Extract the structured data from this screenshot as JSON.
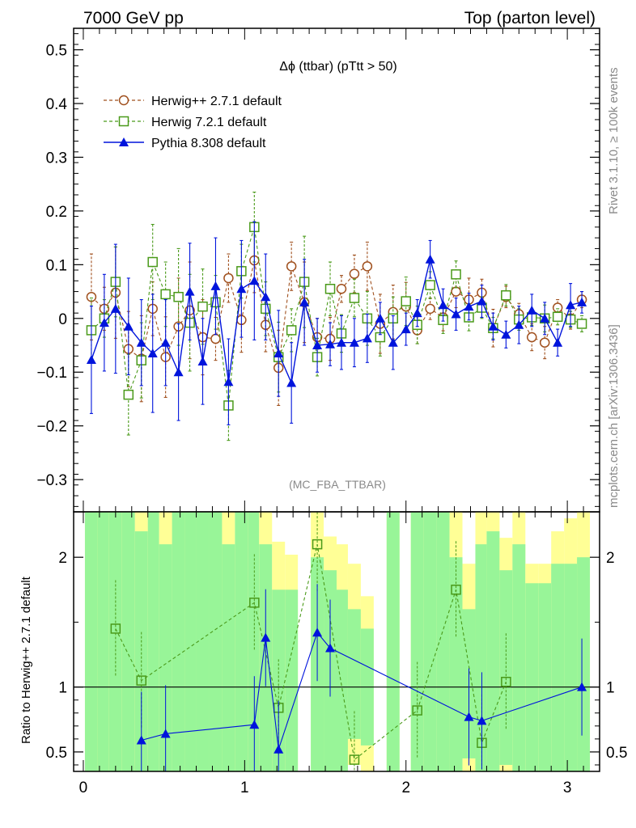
{
  "header": {
    "left": "7000 GeV pp",
    "right": "Top (parton level)"
  },
  "side_labels": {
    "rivet": "Rivet 3.1.10, ≥ 100k events",
    "mcplots": "mcplots.cern.ch [arXiv:1306.3436]"
  },
  "chart_data": [
    {
      "type": "line",
      "title": "Δϕ (ttbar) (pTtt > 50)",
      "analysis_label": "(MC_FBA_TTBAR)",
      "xlabel": "",
      "ylabel": "",
      "xlim": [
        -0.06,
        3.2
      ],
      "ylim": [
        -0.36,
        0.54
      ],
      "xticks": [
        "0",
        "1",
        "2",
        "3"
      ],
      "yticks": [
        "−0.3",
        "−0.2",
        "−0.1",
        "0",
        "0.1",
        "0.2",
        "0.3",
        "0.4",
        "0.5"
      ],
      "legend_position": "top-left",
      "colors": {
        "herwig_pp": "#a0501e",
        "herwig7": "#4a9a1a",
        "pythia": "#0014dc"
      },
      "series": [
        {
          "name": "Herwig++ 2.7.1 default",
          "marker": "open-circle",
          "line": "dashed",
          "x": [
            0.05,
            0.13,
            0.2,
            0.28,
            0.36,
            0.43,
            0.51,
            0.59,
            0.66,
            0.74,
            0.82,
            0.9,
            0.98,
            1.06,
            1.13,
            1.21,
            1.29,
            1.37,
            1.45,
            1.53,
            1.6,
            1.68,
            1.76,
            1.84,
            1.92,
            2.0,
            2.07,
            2.15,
            2.23,
            2.31,
            2.39,
            2.47,
            2.54,
            2.62,
            2.7,
            2.78,
            2.86,
            2.94,
            3.02,
            3.09
          ],
          "y": [
            0.04,
            0.018,
            0.048,
            -0.057,
            -0.075,
            0.018,
            -0.072,
            -0.015,
            0.015,
            -0.035,
            -0.038,
            0.075,
            -0.003,
            0.108,
            -0.012,
            -0.092,
            0.097,
            0.03,
            -0.035,
            -0.038,
            0.055,
            0.083,
            0.097,
            -0.01,
            0.012,
            0.022,
            -0.022,
            0.018,
            0.002,
            0.05,
            0.035,
            0.048,
            -0.018,
            0.04,
            0.008,
            -0.035,
            -0.045,
            0.02,
            0.0,
            0.035
          ],
          "err": [
            0.08,
            0.04,
            0.085,
            0.07,
            0.08,
            0.05,
            0.075,
            0.09,
            0.09,
            0.07,
            0.04,
            0.045,
            0.06,
            0.06,
            0.05,
            0.07,
            0.045,
            0.075,
            0.035,
            0.04,
            0.025,
            0.035,
            0.045,
            0.055,
            0.05,
            0.045,
            0.025,
            0.02,
            0.025,
            0.03,
            0.04,
            0.025,
            0.035,
            0.02,
            0.02,
            0.025,
            0.03,
            0.015,
            0.02,
            0.015
          ]
        },
        {
          "name": "Herwig 7.2.1 default",
          "marker": "open-square",
          "line": "dashed",
          "x": [
            0.05,
            0.13,
            0.2,
            0.28,
            0.36,
            0.43,
            0.51,
            0.59,
            0.66,
            0.74,
            0.82,
            0.9,
            0.98,
            1.06,
            1.13,
            1.21,
            1.29,
            1.37,
            1.45,
            1.53,
            1.6,
            1.68,
            1.76,
            1.84,
            1.92,
            2.0,
            2.07,
            2.15,
            2.23,
            2.31,
            2.39,
            2.47,
            2.54,
            2.62,
            2.7,
            2.78,
            2.86,
            2.94,
            3.02,
            3.09
          ],
          "y": [
            -0.022,
            0.0,
            0.068,
            -0.142,
            -0.078,
            0.105,
            0.045,
            0.04,
            -0.008,
            0.022,
            0.03,
            -0.162,
            0.088,
            0.17,
            0.018,
            -0.072,
            -0.022,
            0.068,
            -0.072,
            0.055,
            -0.028,
            0.038,
            0.0,
            -0.035,
            0.0,
            0.032,
            -0.012,
            0.062,
            -0.003,
            0.082,
            0.002,
            0.02,
            -0.018,
            0.043,
            -0.002,
            0.002,
            0.0,
            0.003,
            -0.002,
            -0.01
          ],
          "err": [
            0.06,
            0.035,
            0.065,
            0.075,
            0.07,
            0.07,
            0.06,
            0.09,
            0.09,
            0.07,
            0.05,
            0.065,
            0.05,
            0.065,
            0.05,
            0.065,
            0.04,
            0.085,
            0.035,
            0.05,
            0.035,
            0.035,
            0.05,
            0.035,
            0.04,
            0.045,
            0.035,
            0.025,
            0.025,
            0.025,
            0.025,
            0.02,
            0.02,
            0.02,
            0.02,
            0.015,
            0.025,
            0.015,
            0.015,
            0.015
          ]
        },
        {
          "name": "Pythia 8.308 default",
          "marker": "filled-triangle",
          "line": "solid",
          "x": [
            0.05,
            0.13,
            0.2,
            0.28,
            0.36,
            0.43,
            0.51,
            0.59,
            0.66,
            0.74,
            0.82,
            0.9,
            0.98,
            1.06,
            1.13,
            1.21,
            1.29,
            1.37,
            1.45,
            1.53,
            1.6,
            1.68,
            1.76,
            1.84,
            1.92,
            2.0,
            2.07,
            2.15,
            2.23,
            2.31,
            2.39,
            2.47,
            2.54,
            2.62,
            2.7,
            2.78,
            2.86,
            2.94,
            3.02,
            3.09
          ],
          "y": [
            -0.077,
            -0.008,
            0.018,
            -0.015,
            -0.045,
            -0.065,
            -0.045,
            -0.1,
            0.05,
            -0.08,
            0.06,
            -0.118,
            0.055,
            0.07,
            0.04,
            -0.065,
            -0.12,
            0.03,
            -0.05,
            -0.048,
            -0.045,
            -0.045,
            -0.037,
            0.0,
            -0.045,
            -0.02,
            0.01,
            0.11,
            0.025,
            0.008,
            0.022,
            0.032,
            -0.015,
            -0.03,
            -0.012,
            0.015,
            0.0,
            -0.045,
            0.025,
            0.03
          ],
          "err": [
            0.1,
            0.09,
            0.12,
            0.09,
            0.08,
            0.11,
            0.08,
            0.09,
            0.09,
            0.08,
            0.09,
            0.08,
            0.09,
            0.11,
            0.08,
            0.08,
            0.075,
            0.08,
            0.05,
            0.04,
            0.05,
            0.045,
            0.045,
            0.03,
            0.05,
            0.03,
            0.025,
            0.035,
            0.03,
            0.03,
            0.025,
            0.03,
            0.025,
            0.025,
            0.035,
            0.03,
            0.03,
            0.025,
            0.04,
            0.02
          ]
        }
      ]
    },
    {
      "type": "line",
      "title": "",
      "xlabel": "",
      "ylabel": "Ratio to Herwig++ 2.7.1 default",
      "xlim": [
        -0.06,
        3.2
      ],
      "ylim": [
        0.35,
        2.35
      ],
      "xticks": [
        "0",
        "1",
        "2",
        "3"
      ],
      "yticks": [
        "0.5",
        "1",
        "2"
      ],
      "band_colors": {
        "inner": "#98f598",
        "outer": "#ffff96"
      },
      "bands": [
        {
          "x0": 0.01,
          "x1": 0.09,
          "lo1": 0.35,
          "hi1": 2.35,
          "lo2": 0.35,
          "hi2": 2.35
        },
        {
          "x0": 0.09,
          "x1": 0.16,
          "lo1": 0.35,
          "hi1": 2.35,
          "lo2": 0.35,
          "hi2": 2.35
        },
        {
          "x0": 0.16,
          "x1": 0.24,
          "lo1": 0.35,
          "hi1": 2.35,
          "lo2": 0.35,
          "hi2": 2.35
        },
        {
          "x0": 0.24,
          "x1": 0.32,
          "lo1": 0.35,
          "hi1": 2.35,
          "lo2": 0.35,
          "hi2": 2.35
        },
        {
          "x0": 0.32,
          "x1": 0.4,
          "lo1": 0.35,
          "hi1": 2.2,
          "lo2": 0.35,
          "hi2": 2.35
        },
        {
          "x0": 0.4,
          "x1": 0.47,
          "lo1": 0.35,
          "hi1": 2.35,
          "lo2": 0.35,
          "hi2": 2.35
        },
        {
          "x0": 0.47,
          "x1": 0.55,
          "lo1": 0.35,
          "hi1": 2.1,
          "lo2": 0.35,
          "hi2": 2.35
        },
        {
          "x0": 0.55,
          "x1": 0.63,
          "lo1": 0.35,
          "hi1": 2.35,
          "lo2": 0.35,
          "hi2": 2.35
        },
        {
          "x0": 0.63,
          "x1": 0.7,
          "lo1": 0.35,
          "hi1": 2.35,
          "lo2": 0.35,
          "hi2": 2.35
        },
        {
          "x0": 0.7,
          "x1": 0.78,
          "lo1": 0.35,
          "hi1": 2.35,
          "lo2": 0.35,
          "hi2": 2.35
        },
        {
          "x0": 0.78,
          "x1": 0.86,
          "lo1": 0.35,
          "hi1": 2.35,
          "lo2": 0.35,
          "hi2": 2.35
        },
        {
          "x0": 0.86,
          "x1": 0.94,
          "lo1": 0.35,
          "hi1": 2.1,
          "lo2": 0.35,
          "hi2": 2.35
        },
        {
          "x0": 0.94,
          "x1": 1.02,
          "lo1": 0.35,
          "hi1": 2.35,
          "lo2": 0.35,
          "hi2": 2.35
        },
        {
          "x0": 1.02,
          "x1": 1.09,
          "lo1": 0.35,
          "hi1": 2.35,
          "lo2": 0.35,
          "hi2": 2.35
        },
        {
          "x0": 1.09,
          "x1": 1.17,
          "lo1": 0.35,
          "hi1": 2.1,
          "lo2": 0.35,
          "hi2": 2.35
        },
        {
          "x0": 1.17,
          "x1": 1.25,
          "lo1": 0.35,
          "hi1": 1.75,
          "lo2": 0.35,
          "hi2": 2.12
        },
        {
          "x0": 1.25,
          "x1": 1.33,
          "lo1": 0.35,
          "hi1": 1.75,
          "lo2": 0.35,
          "hi2": 2.02
        },
        {
          "x0": 1.41,
          "x1": 1.49,
          "lo1": 0.35,
          "hi1": 2.0,
          "lo2": 0.35,
          "hi2": 2.35
        },
        {
          "x0": 1.49,
          "x1": 1.57,
          "lo1": 0.35,
          "hi1": 1.9,
          "lo2": 0.35,
          "hi2": 2.16
        },
        {
          "x0": 1.57,
          "x1": 1.64,
          "lo1": 0.35,
          "hi1": 1.75,
          "lo2": 0.35,
          "hi2": 2.1
        },
        {
          "x0": 1.64,
          "x1": 1.72,
          "lo1": 0.6,
          "hi1": 1.6,
          "lo2": 0.4,
          "hi2": 1.95
        },
        {
          "x0": 1.72,
          "x1": 1.8,
          "lo1": 0.55,
          "hi1": 1.45,
          "lo2": 0.35,
          "hi2": 1.7
        },
        {
          "x0": 1.88,
          "x1": 1.96,
          "lo1": 0.35,
          "hi1": 2.35,
          "lo2": 0.35,
          "hi2": 2.35
        },
        {
          "x0": 2.03,
          "x1": 2.11,
          "lo1": 0.35,
          "hi1": 2.35,
          "lo2": 0.35,
          "hi2": 2.35
        },
        {
          "x0": 2.11,
          "x1": 2.19,
          "lo1": 0.35,
          "hi1": 2.35,
          "lo2": 0.35,
          "hi2": 2.35
        },
        {
          "x0": 2.19,
          "x1": 2.27,
          "lo1": 0.35,
          "hi1": 2.35,
          "lo2": 0.35,
          "hi2": 2.35
        },
        {
          "x0": 2.27,
          "x1": 2.35,
          "lo1": 0.35,
          "hi1": 2.0,
          "lo2": 0.35,
          "hi2": 2.35
        },
        {
          "x0": 2.35,
          "x1": 2.43,
          "lo1": 0.45,
          "hi1": 1.6,
          "lo2": 0.35,
          "hi2": 1.95
        },
        {
          "x0": 2.43,
          "x1": 2.5,
          "lo1": 0.35,
          "hi1": 2.1,
          "lo2": 0.35,
          "hi2": 2.35
        },
        {
          "x0": 2.5,
          "x1": 2.58,
          "lo1": 0.35,
          "hi1": 2.2,
          "lo2": 0.35,
          "hi2": 2.35
        },
        {
          "x0": 2.58,
          "x1": 2.66,
          "lo1": 0.4,
          "hi1": 1.9,
          "lo2": 0.35,
          "hi2": 2.15
        },
        {
          "x0": 2.66,
          "x1": 2.74,
          "lo1": 0.35,
          "hi1": 2.1,
          "lo2": 0.35,
          "hi2": 2.35
        },
        {
          "x0": 2.74,
          "x1": 2.82,
          "lo1": 0.35,
          "hi1": 1.8,
          "lo2": 0.35,
          "hi2": 1.95
        },
        {
          "x0": 2.82,
          "x1": 2.9,
          "lo1": 0.35,
          "hi1": 1.8,
          "lo2": 0.35,
          "hi2": 1.95
        },
        {
          "x0": 2.9,
          "x1": 2.98,
          "lo1": 0.35,
          "hi1": 1.95,
          "lo2": 0.35,
          "hi2": 2.2
        },
        {
          "x0": 2.98,
          "x1": 3.06,
          "lo1": 0.35,
          "hi1": 1.95,
          "lo2": 0.35,
          "hi2": 2.3
        },
        {
          "x0": 3.06,
          "x1": 3.14,
          "lo1": 0.35,
          "hi1": 2.0,
          "lo2": 0.35,
          "hi2": 2.35
        }
      ],
      "series": [
        {
          "name": "Herwig 7.2.1 default",
          "x": [
            0.2,
            0.36,
            1.06,
            1.21,
            1.45,
            1.68,
            2.07,
            2.31,
            2.47,
            2.62
          ],
          "y": [
            1.45,
            1.05,
            1.65,
            0.84,
            2.1,
            0.44,
            0.82,
            1.75,
            0.57,
            1.04
          ]
        },
        {
          "name": "Pythia 8.308 default",
          "x": [
            0.36,
            0.51,
            1.06,
            1.13,
            1.21,
            1.45,
            1.53,
            2.39,
            2.47,
            3.09
          ],
          "y": [
            0.59,
            0.64,
            0.71,
            1.38,
            0.52,
            1.42,
            1.3,
            0.77,
            0.74,
            1.0
          ]
        }
      ]
    }
  ]
}
